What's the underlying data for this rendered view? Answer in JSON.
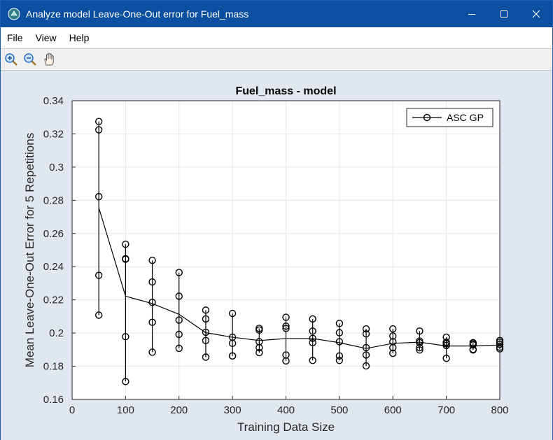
{
  "window": {
    "title": "Analyze model Leave-One-Out error for Fuel_mass",
    "controls": [
      "minimize",
      "maximize",
      "close"
    ]
  },
  "menu": {
    "items": [
      "File",
      "View",
      "Help"
    ]
  },
  "toolbar": {
    "tools": [
      "zoom-in-icon",
      "zoom-out-icon",
      "pan-hand-icon"
    ]
  },
  "colors": {
    "titlebar": "#0b4fa0",
    "figure_background": "#e1e7f0",
    "axes_background": "#ffffff",
    "series": "#000000"
  },
  "chart_data": {
    "type": "line",
    "title": "Fuel_mass - model",
    "xlabel": "Training Data Size",
    "ylabel": "Mean Leave-One-Out Error for 5 Repetitions",
    "xlim": [
      0,
      800
    ],
    "ylim": [
      0.16,
      0.34
    ],
    "xticks": [
      "0",
      "100",
      "200",
      "300",
      "400",
      "500",
      "600",
      "700",
      "800"
    ],
    "yticks": [
      "0.16",
      "0.18",
      "0.2",
      "0.22",
      "0.24",
      "0.26",
      "0.28",
      "0.3",
      "0.32",
      "0.34"
    ],
    "grid": true,
    "legend": {
      "entries": [
        "ASC GP"
      ],
      "location": "top-right"
    },
    "series": [
      {
        "name": "ASC GP",
        "marker": "circle",
        "x": [
          50,
          100,
          150,
          200,
          250,
          300,
          350,
          400,
          450,
          500,
          550,
          600,
          650,
          700,
          750,
          800
        ],
        "mean": [
          0.2755,
          0.2222,
          0.2178,
          0.2113,
          0.2002,
          0.1975,
          0.1955,
          0.1967,
          0.1967,
          0.1942,
          0.1907,
          0.1938,
          0.1945,
          0.1922,
          0.1922,
          0.1928
        ],
        "repetitions": [
          [
            0.3275,
            0.3225,
            0.2822,
            0.2348,
            0.2108
          ],
          [
            0.2535,
            0.2448,
            0.2445,
            0.1978,
            0.1708
          ],
          [
            0.2438,
            0.2308,
            0.2185,
            0.2065,
            0.1885
          ],
          [
            0.2365,
            0.2222,
            0.2078,
            0.1992,
            0.1908
          ],
          [
            0.2138,
            0.2085,
            0.2005,
            0.1955,
            0.1855
          ],
          [
            0.2118,
            0.1975,
            0.1938,
            0.1862,
            0.1862
          ],
          [
            0.2028,
            0.2018,
            0.1948,
            0.1912,
            0.1882
          ],
          [
            0.2095,
            0.2042,
            0.2028,
            0.1868,
            0.1832
          ],
          [
            0.2085,
            0.2012,
            0.1968,
            0.1942,
            0.1835
          ],
          [
            0.2058,
            0.2002,
            0.1948,
            0.1862,
            0.1835
          ],
          [
            0.2025,
            0.1995,
            0.1912,
            0.1868,
            0.1802
          ],
          [
            0.2025,
            0.1982,
            0.1948,
            0.1912,
            0.1878
          ],
          [
            0.2012,
            0.1952,
            0.1942,
            0.1912,
            0.1898
          ],
          [
            0.1975,
            0.1945,
            0.1935,
            0.1925,
            0.1848
          ],
          [
            0.1942,
            0.1935,
            0.1928,
            0.1902,
            0.1898
          ],
          [
            0.1955,
            0.1945,
            0.1932,
            0.1915,
            0.1905
          ]
        ]
      }
    ]
  }
}
